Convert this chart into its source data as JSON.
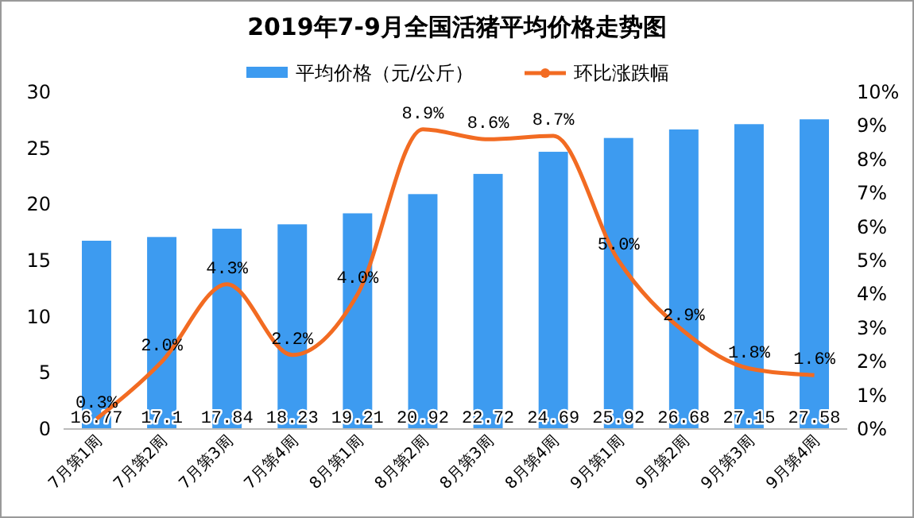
{
  "chart_data": {
    "type": "bar",
    "title": "2019年7-9月全国活猪平均价格走势图",
    "categories": [
      "7月第1周",
      "7月第2周",
      "7月第3周",
      "7月第4周",
      "8月第1周",
      "8月第2周",
      "8月第3周",
      "8月第4周",
      "9月第1周",
      "9月第2周",
      "9月第3周",
      "9月第4周"
    ],
    "series": [
      {
        "name": "平均价格（元/公斤）",
        "color": "#3d9bf0",
        "values": [
          16.77,
          17.1,
          17.84,
          18.23,
          19.21,
          20.92,
          22.72,
          24.69,
          25.92,
          26.68,
          27.15,
          27.58
        ],
        "value_labels": [
          "16.77",
          "17.1",
          "17.84",
          "18.23",
          "19.21",
          "20.92",
          "22.72",
          "24.69",
          "25.92",
          "26.68",
          "27.15",
          "27.58"
        ]
      },
      {
        "name": "环比涨跌幅",
        "type": "line",
        "axis": "y2",
        "color": "#f26b22",
        "values": [
          0.3,
          2.0,
          4.3,
          2.2,
          4.0,
          8.9,
          8.6,
          8.7,
          5.0,
          2.9,
          1.8,
          1.6
        ],
        "value_labels": [
          "0.3%",
          "2.0%",
          "4.3%",
          "2.2%",
          "4.0%",
          "8.9%",
          "8.6%",
          "8.7%",
          "5.0%",
          "2.9%",
          "1.8%",
          "1.6%"
        ]
      }
    ],
    "ylim": [
      0,
      30
    ],
    "yticks": [
      0,
      5,
      10,
      15,
      20,
      25,
      30
    ],
    "y2lim": [
      0,
      10
    ],
    "y2ticks": [
      {
        "value": 0,
        "label": "0%"
      },
      {
        "value": 1,
        "label": "1%"
      },
      {
        "value": 2,
        "label": "2%"
      },
      {
        "value": 3,
        "label": "3%"
      },
      {
        "value": 4,
        "label": "4%"
      },
      {
        "value": 5,
        "label": "5%"
      },
      {
        "value": 6,
        "label": "6%"
      },
      {
        "value": 7,
        "label": "7%"
      },
      {
        "value": 8,
        "label": "8%"
      },
      {
        "value": 9,
        "label": "9%"
      },
      {
        "value": 10,
        "label": "10%"
      }
    ],
    "legend": "top",
    "grid": false,
    "marker": "none",
    "line_style": "solid"
  }
}
